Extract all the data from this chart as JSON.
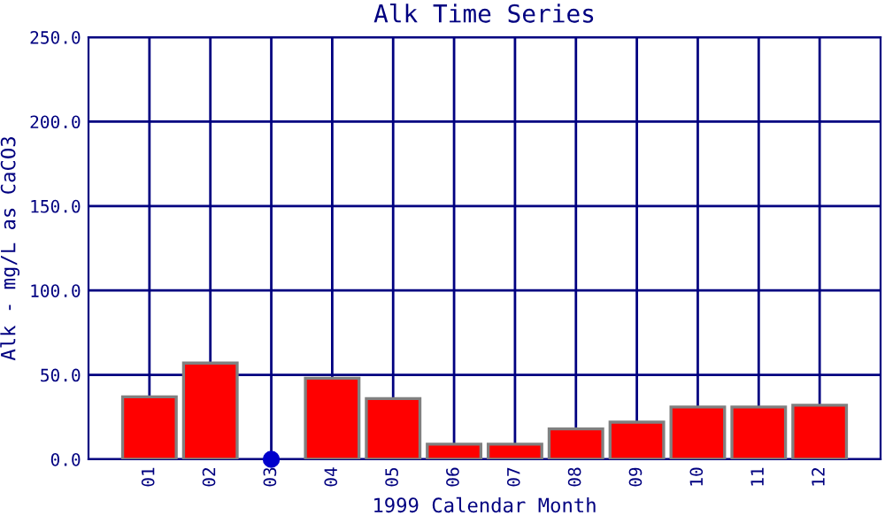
{
  "chart_data": {
    "type": "bar",
    "title": "Alk Time Series",
    "xlabel": "1999 Calendar Month",
    "ylabel": "Alk - mg/L as CaCO3",
    "categories": [
      "01",
      "02",
      "03",
      "04",
      "05",
      "06",
      "07",
      "08",
      "09",
      "10",
      "11",
      "12"
    ],
    "series": [
      {
        "color": "#ff0000",
        "values": [
          37,
          57,
          null,
          48,
          36,
          9,
          9,
          18,
          22,
          31,
          31,
          32
        ]
      },
      {
        "type": "scatter",
        "color": "#0000cc",
        "marker": "circle",
        "x": [
          "03"
        ],
        "values": [
          0
        ]
      }
    ],
    "ylim": [
      0,
      250
    ],
    "yticks": [
      {
        "value": 0,
        "label": "0.0"
      },
      {
        "value": 50,
        "label": "50.0"
      },
      {
        "value": 100,
        "label": "100.0"
      },
      {
        "value": 150,
        "label": "150.0"
      },
      {
        "value": 200,
        "label": "200.0"
      },
      {
        "value": 250,
        "label": "250.0"
      }
    ],
    "grid": true
  }
}
